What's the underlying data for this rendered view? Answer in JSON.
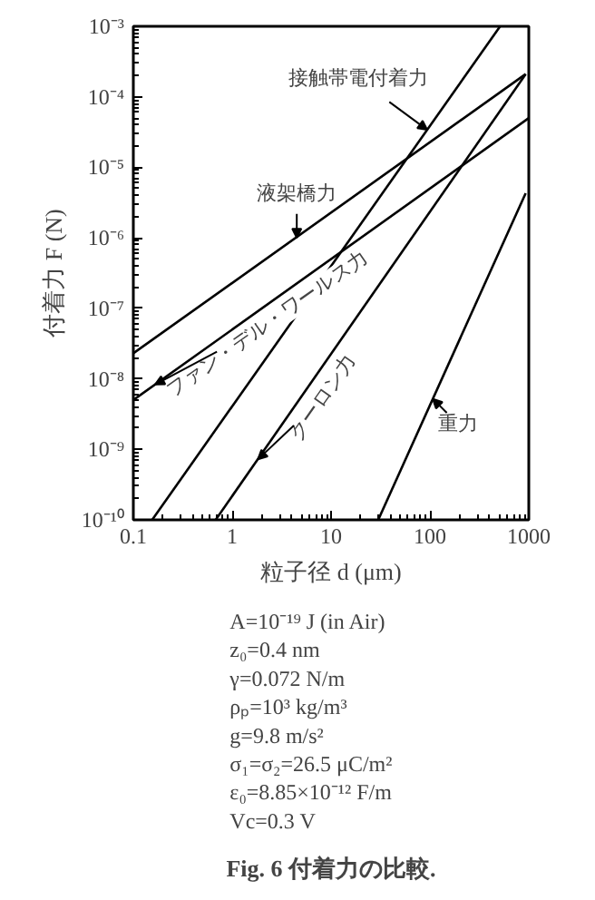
{
  "chart_data": {
    "type": "line",
    "xlabel": "粒子径 d (μm)",
    "ylabel": "付着力 F (N)",
    "log": "xy",
    "xlim": [
      0.1,
      1000
    ],
    "ylim": [
      1e-10,
      0.001
    ],
    "xticks": [
      0.1,
      1,
      10,
      100,
      1000
    ],
    "yticks": [
      {
        "value": 1e-10,
        "label": "10⁻¹⁰"
      },
      {
        "value": 1e-09,
        "label": "10⁻⁹"
      },
      {
        "value": 1e-08,
        "label": "10⁻⁸"
      },
      {
        "value": 1e-07,
        "label": "10⁻⁷"
      },
      {
        "value": 1e-06,
        "label": "10⁻⁶"
      },
      {
        "value": 1e-05,
        "label": "10⁻⁵"
      },
      {
        "value": 0.0001,
        "label": "10⁻⁴"
      },
      {
        "value": 0.001,
        "label": "10⁻³"
      }
    ],
    "grid": false,
    "marker": "none",
    "line_style": "solid",
    "series": [
      {
        "color": "#000000",
        "x": [
          0.1,
          930
        ],
        "values": [
          2.3e-08,
          0.00021
        ]
      },
      {
        "color": "#000000",
        "x": [
          0.1,
          1000
        ],
        "values": [
          5e-09,
          5e-05
        ]
      },
      {
        "color": "#000000",
        "x": [
          0.155,
          513
        ],
        "values": [
          1e-10,
          0.001
        ]
      },
      {
        "color": "#000000",
        "x": [
          0.68,
          930
        ],
        "values": [
          1e-10,
          0.00021
        ]
      },
      {
        "color": "#000000",
        "x": [
          30,
          930
        ],
        "values": [
          1e-10,
          4.3e-06
        ]
      }
    ],
    "annotations": [
      {
        "text": "接触帯電付着力",
        "x": 94,
        "y": 3.4e-05
      },
      {
        "text": "液架橋力",
        "x": 4.5,
        "y": 1e-06
      },
      {
        "text": "ファン・デル・ワールス力",
        "x": 0.166,
        "y": 8.3e-09
      },
      {
        "text": "クーロン力",
        "x": 1.82,
        "y": 7.2e-10
      },
      {
        "text": "重力",
        "x": 107,
        "y": 5.2e-09
      },
      "A=10⁻¹⁹ J (in Air)",
      "z₀=0.4 nm",
      "γ=0.072 N/m",
      "ρₚ=10³ kg/m³",
      "g=9.8 m/s²",
      "σ₁=σ₂=26.5 μC/m²",
      "ε₀=8.85×10⁻¹² F/m",
      "Vc=0.3 V",
      "Fig. 6 付着力の比較."
    ]
  }
}
